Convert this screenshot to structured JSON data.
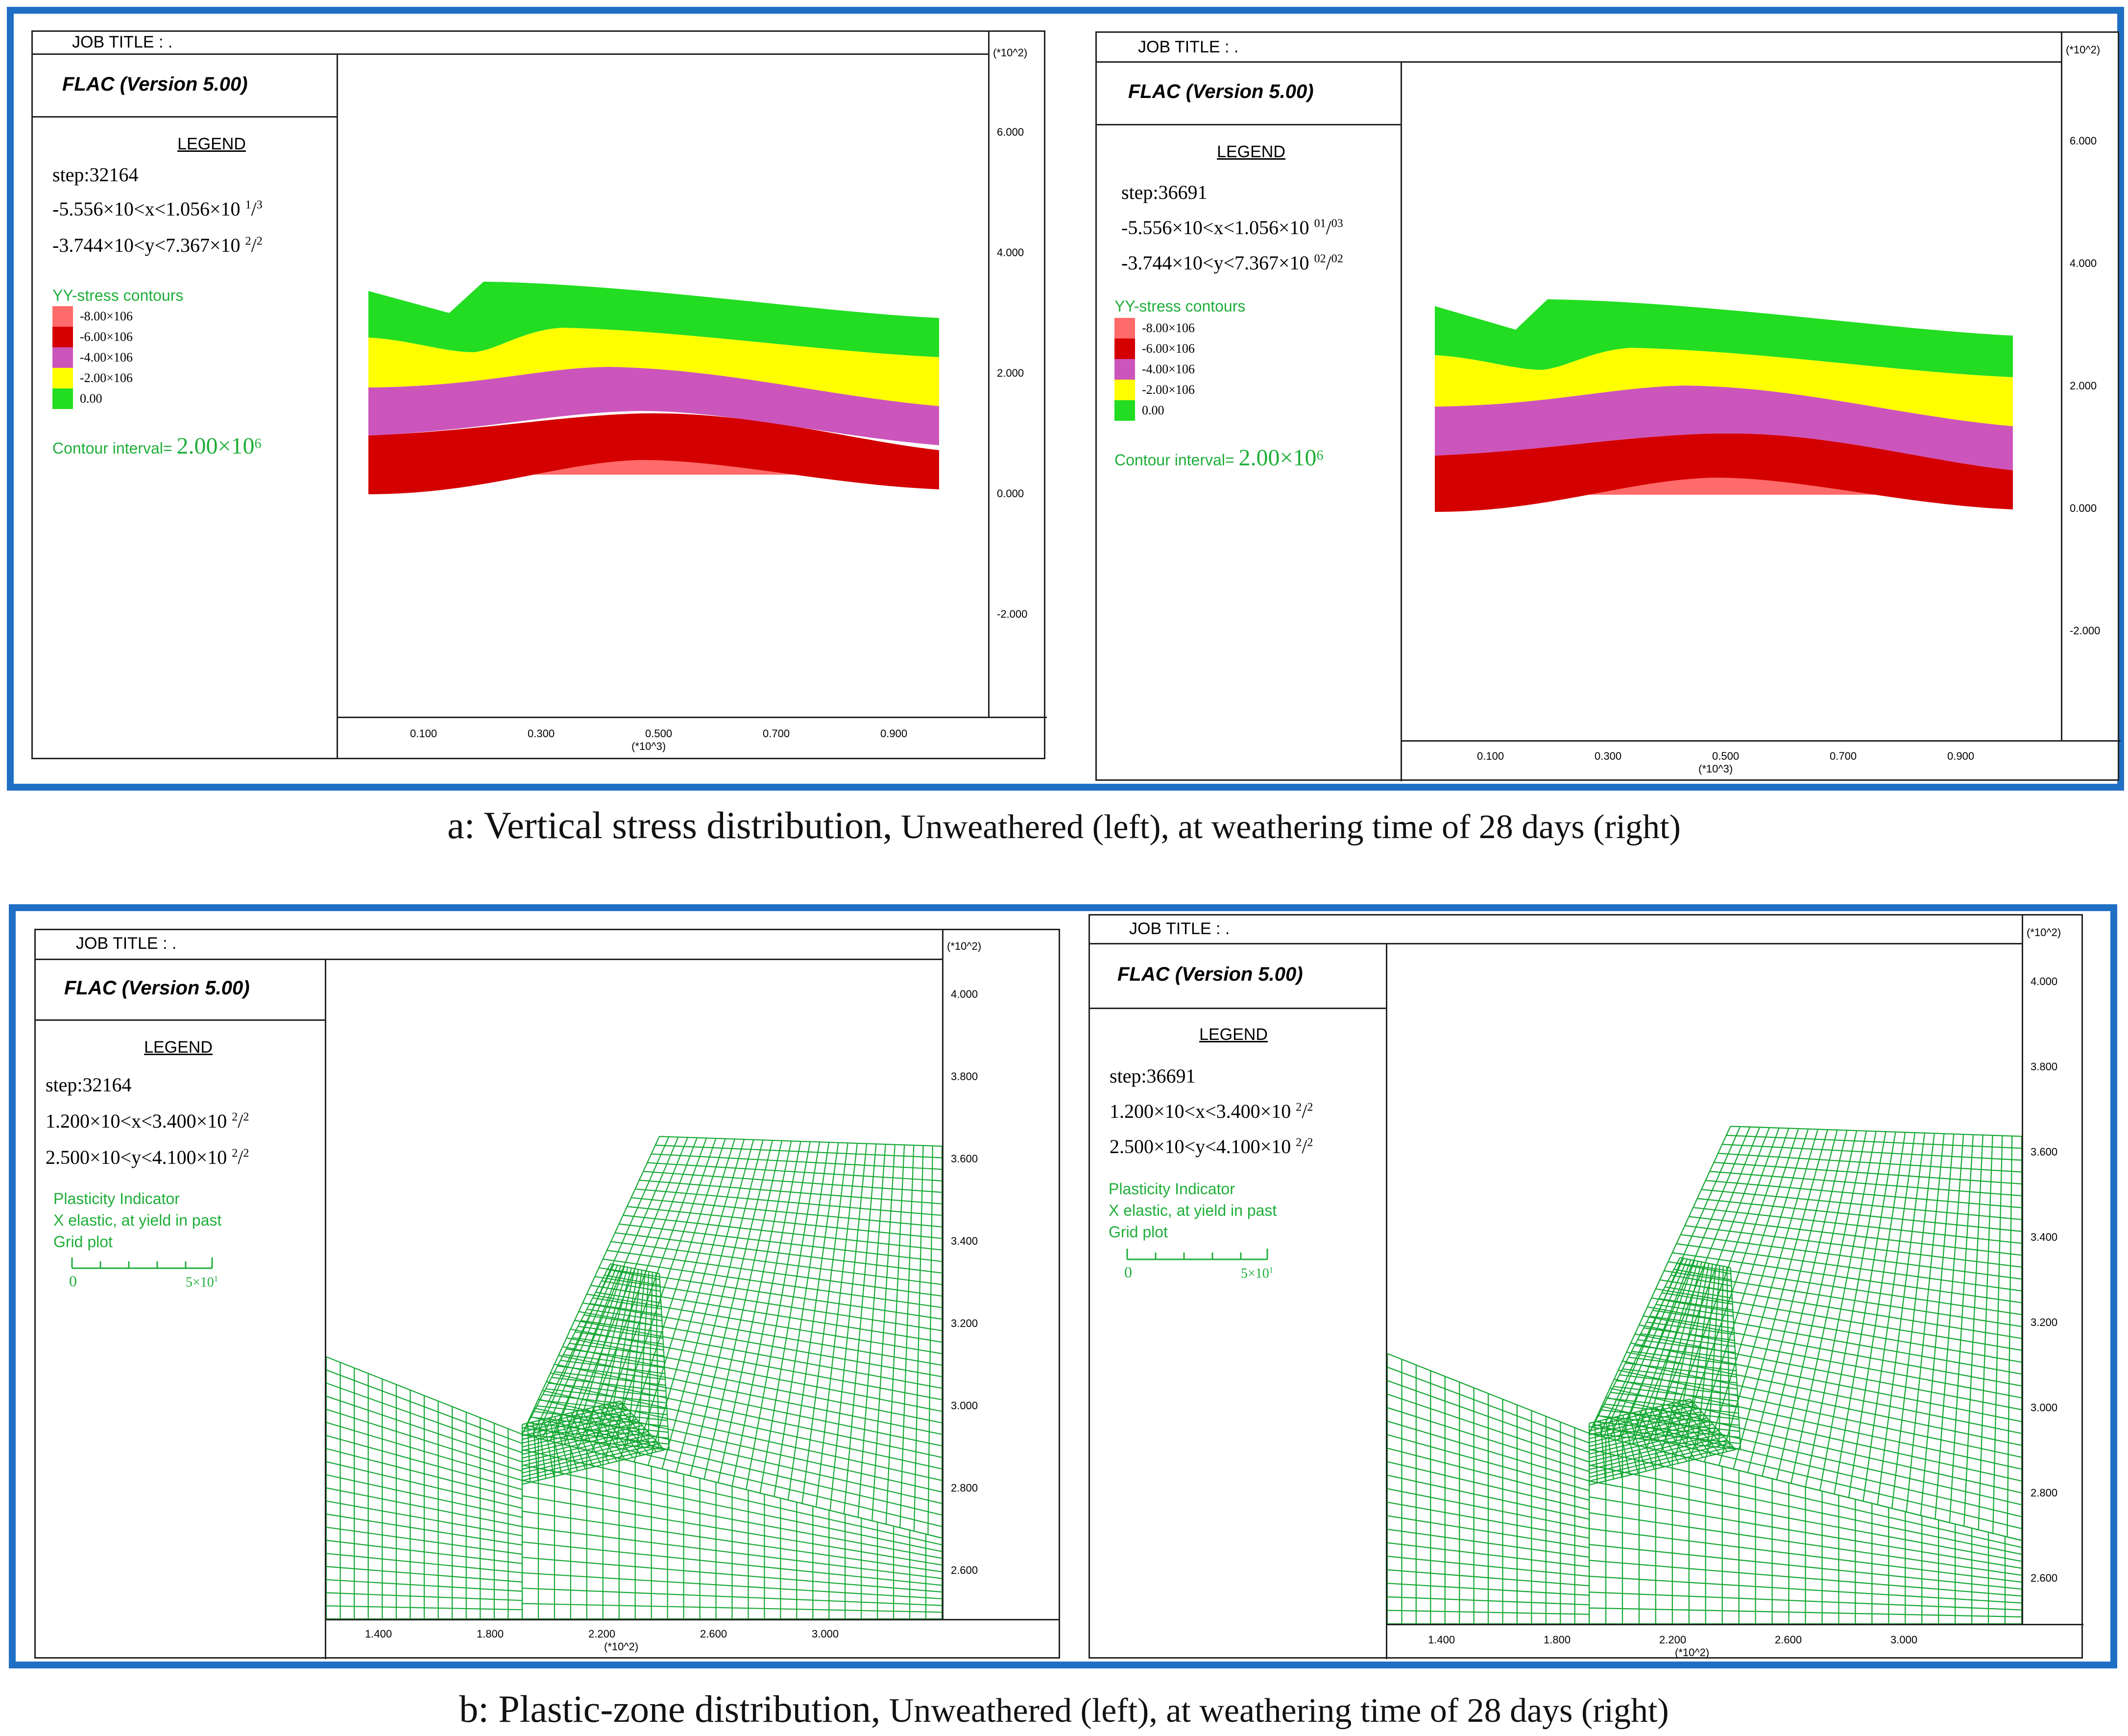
{
  "common": {
    "job_title": "JOB TITLE : .",
    "software": "FLAC (Version 5.00)",
    "legend": "LEGEND",
    "axis_factor_y2": "(*10^2)",
    "axis_factor_x3": "(*10^3)",
    "axis_factor_x2": "(*10^2)"
  },
  "colors": {
    "frame": "#1f6fc4",
    "green": "#1fae3a",
    "yellow": "#ffff00",
    "magenta": "#cc55bb",
    "red": "#d40000",
    "salmon": "#ff6a6a",
    "mesh": "#15a834"
  },
  "stress": {
    "caption_main": "a: Vertical stress distribution,",
    "caption_rest": " Unweathered (left), at weathering time of 28 days (right)",
    "contour_label": "YY-stress contours",
    "contour_values": [
      "-8.00×10",
      "-6.00×10",
      "-4.00×10",
      "-2.00×10",
      "0.00"
    ],
    "contour_exp": "6",
    "interval_label": "Contour interval=",
    "interval_value": "2.00×10",
    "interval_exp": "6",
    "y_ticks": [
      "6.000",
      "4.000",
      "2.000",
      "0.000",
      "-2.000"
    ],
    "x_ticks": [
      "0.100",
      "0.300",
      "0.500",
      "0.700",
      "0.900"
    ],
    "left": {
      "step": "step:32164",
      "xrange": "-5.556×10<x<1.056×10",
      "xexp1": "1",
      "xexp2": "3",
      "yrange": "-3.744×10<y<7.367×10",
      "yexp1": "2",
      "yexp2": "2"
    },
    "right": {
      "step": "step:36691",
      "xrange": "-5.556×10<x<1.056×10",
      "xexp1": "01",
      "xexp2": "03",
      "yrange": "-3.744×10<y<7.367×10",
      "yexp1": "02",
      "yexp2": "02"
    }
  },
  "plastic": {
    "caption_main": "b: Plastic-zone distribution,",
    "caption_rest": " Unweathered (left), at weathering time of 28 days (right)",
    "indicator_label": "Plasticity Indicator",
    "indicator_detail": "X elastic, at yield in past",
    "grid_label": "Grid plot",
    "scale_start": "0",
    "scale_end": "5×10",
    "scale_exp": "1",
    "y_ticks": [
      "4.000",
      "3.800",
      "3.600",
      "3.400",
      "3.200",
      "3.000",
      "2.800",
      "2.600"
    ],
    "x_ticks": [
      "1.400",
      "1.800",
      "2.200",
      "2.600",
      "3.000"
    ],
    "left": {
      "step": "step:32164",
      "xrange": "1.200×10<x<3.400×10",
      "xexp1": "2",
      "xexp2": "2",
      "yrange": "2.500×10<y<4.100×10",
      "yexp1": "2",
      "yexp2": "2"
    },
    "right": {
      "step": "step:36691",
      "xrange": "1.200×10<x<3.400×10",
      "xexp1": "2",
      "xexp2": "2",
      "yrange": "2.500×10<y<4.100×10",
      "yexp1": "2",
      "yexp2": "2"
    }
  }
}
